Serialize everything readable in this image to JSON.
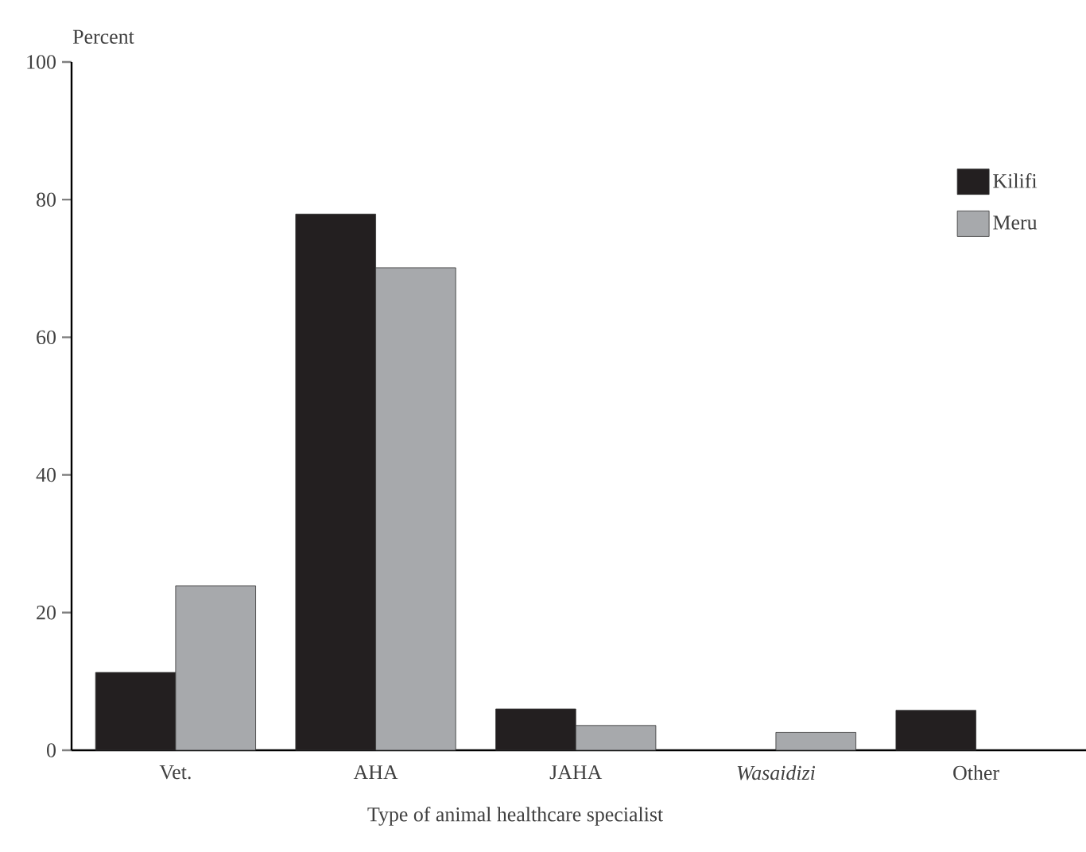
{
  "chart_data": {
    "type": "bar",
    "ylabel": "Percent",
    "xlabel": "Type of animal healthcare specialist",
    "categories": [
      "Vet.",
      "AHA",
      "JAHA",
      "*Wasaidizi*",
      "Other"
    ],
    "series": [
      {
        "name": "Kilifi",
        "color": "#231f20",
        "values": [
          11.3,
          77.9,
          6.0,
          null,
          5.8
        ]
      },
      {
        "name": "Meru",
        "color": "#a7a9ac",
        "values": [
          23.9,
          70.1,
          3.6,
          2.6,
          null
        ]
      }
    ],
    "ylim": [
      0,
      100
    ],
    "yticks": [
      0,
      20,
      40,
      60,
      80,
      100
    ],
    "grid": false,
    "legend": "right"
  }
}
